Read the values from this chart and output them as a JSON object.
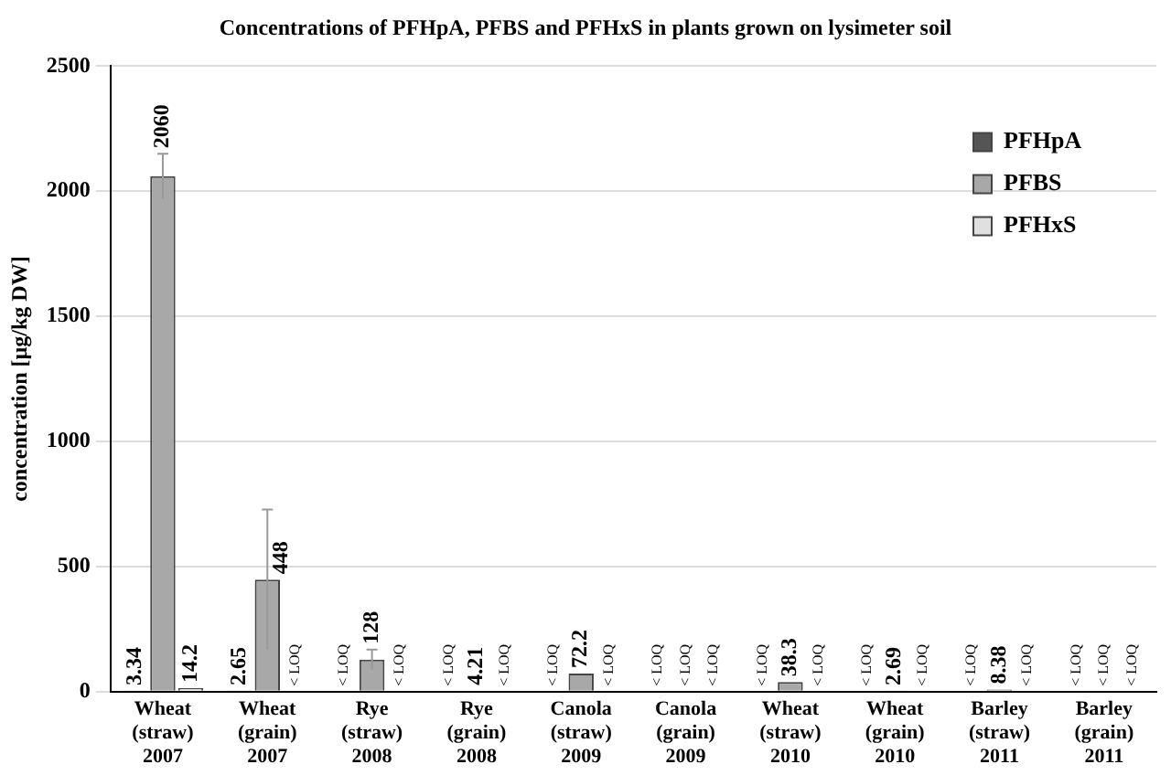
{
  "chart_data": {
    "type": "bar",
    "title": "Concentrations of PFHpA, PFBS and PFHxS in plants grown on lysimeter soil",
    "ylabel": "concentration [µg/kg DW]",
    "categories": [
      "Wheat (straw) 2007",
      "Wheat (grain) 2007",
      "Rye (straw) 2008",
      "Rye (grain) 2008",
      "Canola (straw) 2009",
      "Canola (grain) 2009",
      "Wheat (straw) 2010",
      "Wheat (grain) 2010",
      "Barley (straw) 2011",
      "Barley (grain) 2011"
    ],
    "series": [
      {
        "name": "PFHpA",
        "color": "#555555",
        "values": [
          3.34,
          2.65,
          null,
          null,
          null,
          null,
          null,
          null,
          null,
          null
        ],
        "value_labels": [
          "3.34",
          "2.65",
          "< LOQ",
          "< LOQ",
          "< LOQ",
          "< LOQ",
          "< LOQ",
          "< LOQ",
          "< LOQ",
          "< LOQ"
        ]
      },
      {
        "name": "PFBS",
        "color": "#a8a8a8",
        "values": [
          2060,
          448,
          128,
          4.21,
          72.2,
          null,
          38.3,
          2.69,
          8.38,
          null
        ],
        "errors": [
          90,
          280,
          40,
          null,
          null,
          null,
          null,
          null,
          null,
          null
        ],
        "value_labels": [
          "2060",
          "448",
          "128",
          "4.21",
          "72.2",
          "< LOQ",
          "38.3",
          "2.69",
          "8.38",
          "< LOQ"
        ]
      },
      {
        "name": "PFHxS",
        "color": "#e0e0e0",
        "values": [
          14.2,
          null,
          null,
          null,
          null,
          null,
          null,
          null,
          null,
          null
        ],
        "value_labels": [
          "14.2",
          "< LOQ",
          "< LOQ",
          "< LOQ",
          "< LOQ",
          "< LOQ",
          "< LOQ",
          "< LOQ",
          "< LOQ",
          "< LOQ"
        ]
      }
    ],
    "ylim": [
      0,
      2500
    ],
    "yticks": [
      0,
      500,
      1000,
      1500,
      2000,
      2500
    ],
    "grid": "y",
    "legend": "top right"
  }
}
